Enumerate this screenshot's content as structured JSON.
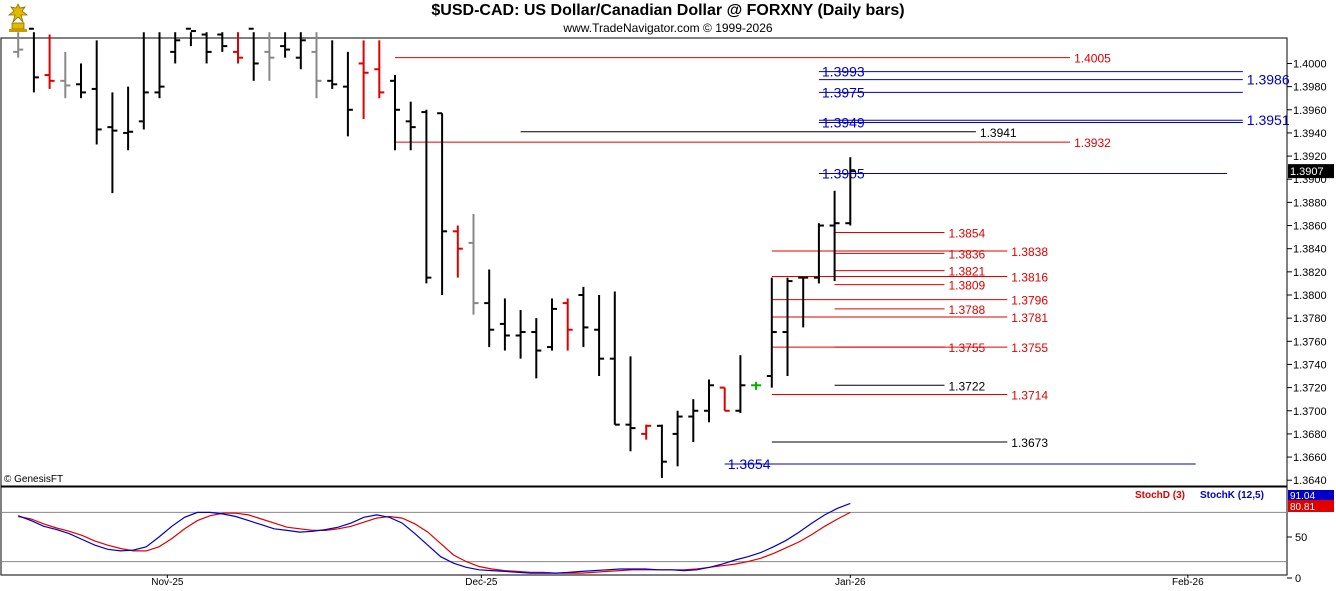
{
  "header": {
    "title": "$USD-CAD:  US Dollar/Canadian Dollar @ FORXNY  (Daily bars)",
    "subtitle": "www.TradeNavigator.com © 1999-2026"
  },
  "copyright": "© GenesisFT",
  "colors": {
    "up": "#000000",
    "down": "#e00000",
    "neutral": "#888888",
    "reversal": "#00b000",
    "line_red": "#e00000",
    "line_blue": "#0000c8",
    "line_black": "#000000",
    "stochD": "#e00000",
    "stochK": "#0000c8",
    "grid_line": "#888888",
    "price_marker_bg": "#000000"
  },
  "chart_data": [
    {
      "type": "ohlc",
      "title": "$USD-CAD:  US Dollar/Canadian Dollar @ FORXNY  (Daily bars)",
      "ylim": [
        1.3635,
        1.4022
      ],
      "yticks": [
        "1.4000",
        "1.3980",
        "1.3960",
        "1.3940",
        "1.3920",
        "1.3900",
        "1.3880",
        "1.3860",
        "1.3840",
        "1.3820",
        "1.3800",
        "1.3780",
        "1.3760",
        "1.3740",
        "1.3720",
        "1.3700",
        "1.3680",
        "1.3660",
        "1.3640"
      ],
      "current_price": "1.3907",
      "x_labels": [
        {
          "label": "Nov-25",
          "bar": 9.5
        },
        {
          "label": "Dec-25",
          "bar": 29.5
        },
        {
          "label": "Jan-26",
          "bar": 53
        },
        {
          "label": "Feb-26",
          "bar": 74.5
        }
      ],
      "bars": [
        {
          "o": 1.401,
          "h": 1.406,
          "l": 1.4005,
          "c": 1.4012,
          "color": "neutral"
        },
        {
          "o": 1.403,
          "h": 1.407,
          "l": 1.3975,
          "c": 1.3988,
          "color": "up"
        },
        {
          "o": 1.399,
          "h": 1.4025,
          "l": 1.3978,
          "c": 1.3985,
          "color": "down"
        },
        {
          "o": 1.3985,
          "h": 1.401,
          "l": 1.397,
          "c": 1.3981,
          "color": "neutral"
        },
        {
          "o": 1.3982,
          "h": 1.4,
          "l": 1.397,
          "c": 1.3975,
          "color": "up"
        },
        {
          "o": 1.3978,
          "h": 1.402,
          "l": 1.393,
          "c": 1.3943,
          "color": "up"
        },
        {
          "o": 1.3945,
          "h": 1.3975,
          "l": 1.3888,
          "c": 1.3942,
          "color": "up"
        },
        {
          "o": 1.394,
          "h": 1.398,
          "l": 1.3925,
          "c": 1.3941,
          "color": "up"
        },
        {
          "o": 1.395,
          "h": 1.405,
          "l": 1.3943,
          "c": 1.3975,
          "color": "up"
        },
        {
          "o": 1.3975,
          "h": 1.406,
          "l": 1.397,
          "c": 1.398,
          "color": "up"
        },
        {
          "o": 1.401,
          "h": 1.407,
          "l": 1.4,
          "c": 1.402,
          "color": "up"
        },
        {
          "o": 1.403,
          "h": 1.407,
          "l": 1.4015,
          "c": 1.4028,
          "color": "up"
        },
        {
          "o": 1.4025,
          "h": 1.406,
          "l": 1.4,
          "c": 1.401,
          "color": "up"
        },
        {
          "o": 1.4025,
          "h": 1.406,
          "l": 1.401,
          "c": 1.4015,
          "color": "up"
        },
        {
          "o": 1.401,
          "h": 1.405,
          "l": 1.4,
          "c": 1.4005,
          "color": "down"
        },
        {
          "o": 1.403,
          "h": 1.406,
          "l": 1.3985,
          "c": 1.4,
          "color": "up"
        },
        {
          "o": 1.401,
          "h": 1.405,
          "l": 1.3985,
          "c": 1.4005,
          "color": "neutral"
        },
        {
          "o": 1.4015,
          "h": 1.405,
          "l": 1.4005,
          "c": 1.4012,
          "color": "up"
        },
        {
          "o": 1.4005,
          "h": 1.404,
          "l": 1.3995,
          "c": 1.402,
          "color": "up"
        },
        {
          "o": 1.401,
          "h": 1.405,
          "l": 1.397,
          "c": 1.3985,
          "color": "neutral"
        },
        {
          "o": 1.3985,
          "h": 1.402,
          "l": 1.3978,
          "c": 1.3982,
          "color": "up"
        },
        {
          "o": 1.398,
          "h": 1.401,
          "l": 1.3937,
          "c": 1.396,
          "color": "up"
        },
        {
          "o": 1.4,
          "h": 1.402,
          "l": 1.3952,
          "c": 1.3992,
          "color": "down"
        },
        {
          "o": 1.3995,
          "h": 1.402,
          "l": 1.397,
          "c": 1.3975,
          "color": "down"
        },
        {
          "o": 1.3985,
          "h": 1.399,
          "l": 1.3925,
          "c": 1.396,
          "color": "up"
        },
        {
          "o": 1.395,
          "h": 1.3967,
          "l": 1.3925,
          "c": 1.3945,
          "color": "up"
        },
        {
          "o": 1.3958,
          "h": 1.396,
          "l": 1.381,
          "c": 1.3815,
          "color": "up"
        },
        {
          "o": 1.3957,
          "h": 1.3957,
          "l": 1.38,
          "c": 1.3855,
          "color": "up"
        },
        {
          "o": 1.3855,
          "h": 1.386,
          "l": 1.3815,
          "c": 1.384,
          "color": "down"
        },
        {
          "o": 1.3845,
          "h": 1.387,
          "l": 1.3783,
          "c": 1.3793,
          "color": "neutral"
        },
        {
          "o": 1.3793,
          "h": 1.3822,
          "l": 1.3755,
          "c": 1.377,
          "color": "up"
        },
        {
          "o": 1.3775,
          "h": 1.3797,
          "l": 1.3752,
          "c": 1.3765,
          "color": "up"
        },
        {
          "o": 1.3765,
          "h": 1.3787,
          "l": 1.3745,
          "c": 1.3768,
          "color": "up"
        },
        {
          "o": 1.3768,
          "h": 1.378,
          "l": 1.3728,
          "c": 1.3752,
          "color": "up"
        },
        {
          "o": 1.3755,
          "h": 1.3797,
          "l": 1.3752,
          "c": 1.3788,
          "color": "up"
        },
        {
          "o": 1.3793,
          "h": 1.3797,
          "l": 1.3752,
          "c": 1.377,
          "color": "down"
        },
        {
          "o": 1.38,
          "h": 1.3807,
          "l": 1.3755,
          "c": 1.3772,
          "color": "up"
        },
        {
          "o": 1.377,
          "h": 1.38,
          "l": 1.373,
          "c": 1.3745,
          "color": "up"
        },
        {
          "o": 1.3745,
          "h": 1.3803,
          "l": 1.3688,
          "c": 1.3688,
          "color": "up"
        },
        {
          "o": 1.3688,
          "h": 1.3747,
          "l": 1.3665,
          "c": 1.3685,
          "color": "up"
        },
        {
          "o": 1.368,
          "h": 1.3688,
          "l": 1.3675,
          "c": 1.3687,
          "color": "down"
        },
        {
          "o": 1.3687,
          "h": 1.3688,
          "l": 1.3642,
          "c": 1.3656,
          "color": "up"
        },
        {
          "o": 1.368,
          "h": 1.37,
          "l": 1.3652,
          "c": 1.3695,
          "color": "up"
        },
        {
          "o": 1.3695,
          "h": 1.371,
          "l": 1.3673,
          "c": 1.37,
          "color": "up"
        },
        {
          "o": 1.37,
          "h": 1.3727,
          "l": 1.369,
          "c": 1.3722,
          "color": "up"
        },
        {
          "o": 1.372,
          "h": 1.372,
          "l": 1.37,
          "c": 1.37,
          "color": "down"
        },
        {
          "o": 1.37,
          "h": 1.3748,
          "l": 1.3698,
          "c": 1.3722,
          "color": "up"
        },
        {
          "o": 1.3722,
          "h": 1.3725,
          "l": 1.3718,
          "c": 1.3722,
          "color": "reversal"
        },
        {
          "o": 1.373,
          "h": 1.3815,
          "l": 1.372,
          "c": 1.3768,
          "color": "up"
        },
        {
          "o": 1.3768,
          "h": 1.3815,
          "l": 1.373,
          "c": 1.3812,
          "color": "up"
        },
        {
          "o": 1.3815,
          "h": 1.3815,
          "l": 1.3772,
          "c": 1.3815,
          "color": "up"
        },
        {
          "o": 1.3815,
          "h": 1.3862,
          "l": 1.381,
          "c": 1.386,
          "color": "up"
        },
        {
          "o": 1.386,
          "h": 1.389,
          "l": 1.3812,
          "c": 1.3862,
          "color": "up"
        },
        {
          "o": 1.3862,
          "h": 1.3919,
          "l": 1.386,
          "c": 1.3907,
          "color": "up"
        }
      ],
      "levels": [
        {
          "price": 1.4005,
          "label": "1.4005",
          "color": "line_red",
          "from": 24,
          "to": 67,
          "label_side": "right"
        },
        {
          "price": 1.3993,
          "label": "1.3993",
          "color": "line_blue",
          "from": 51,
          "to": 78,
          "label_side": "left"
        },
        {
          "price": 1.3986,
          "label": "1.3986",
          "color": "line_blue",
          "from": 51,
          "to": 78,
          "label_side": "right"
        },
        {
          "price": 1.3975,
          "label": "1.3975",
          "color": "line_blue",
          "from": 51,
          "to": 78,
          "label_side": "left"
        },
        {
          "price": 1.3951,
          "label": "1.3951",
          "color": "line_blue",
          "from": 51,
          "to": 78,
          "label_side": "right"
        },
        {
          "price": 1.3949,
          "label": "1.3949",
          "color": "line_blue",
          "from": 51,
          "to": 78,
          "label_side": "left"
        },
        {
          "price": 1.3941,
          "label": "1.3941",
          "color": "line_black",
          "from": 32,
          "to": 61,
          "label_side": "right"
        },
        {
          "price": 1.3932,
          "label": "1.3932",
          "color": "line_red",
          "from": 24,
          "to": 67,
          "label_side": "right"
        },
        {
          "price": 1.3905,
          "label": "1.3905",
          "color": "line_blue",
          "from": 51,
          "to": 77,
          "label_side": "left"
        },
        {
          "price": 1.3854,
          "label": "1.3854",
          "color": "line_red",
          "from": 52,
          "to": 59,
          "label_side": "right"
        },
        {
          "price": 1.3838,
          "label": "1.3838",
          "color": "line_red",
          "from": 48,
          "to": 63,
          "label_side": "right"
        },
        {
          "price": 1.3836,
          "label": "1.3836",
          "color": "line_red",
          "from": 52,
          "to": 59,
          "label_side": "right"
        },
        {
          "price": 1.3821,
          "label": "1.3821",
          "color": "line_red",
          "from": 52,
          "to": 59,
          "label_side": "right"
        },
        {
          "price": 1.3816,
          "label": "1.3816",
          "color": "line_red",
          "from": 48,
          "to": 63,
          "label_side": "right"
        },
        {
          "price": 1.3809,
          "label": "1.3809",
          "color": "line_red",
          "from": 52,
          "to": 59,
          "label_side": "right"
        },
        {
          "price": 1.3796,
          "label": "1.3796",
          "color": "line_red",
          "from": 48,
          "to": 63,
          "label_side": "right"
        },
        {
          "price": 1.3788,
          "label": "1.3788",
          "color": "line_red",
          "from": 52,
          "to": 59,
          "label_side": "right"
        },
        {
          "price": 1.3781,
          "label": "1.3781",
          "color": "line_red",
          "from": 48,
          "to": 63,
          "label_side": "right"
        },
        {
          "price": 1.3755,
          "label": "1.3755",
          "color": "line_red",
          "from": 52,
          "to": 59,
          "label_side": "right"
        },
        {
          "price": 1.3755,
          "label": "1.3755",
          "color": "line_red",
          "from": 48,
          "to": 63,
          "label_side": "right"
        },
        {
          "price": 1.3722,
          "label": "1.3722",
          "color": "line_black",
          "from": 52,
          "to": 59,
          "label_side": "right"
        },
        {
          "price": 1.3714,
          "label": "1.3714",
          "color": "line_red",
          "from": 48,
          "to": 63,
          "label_side": "right"
        },
        {
          "price": 1.3673,
          "label": "1.3673",
          "color": "line_black",
          "from": 48,
          "to": 63,
          "label_side": "right"
        },
        {
          "price": 1.3654,
          "label": "1.3654",
          "color": "line_blue",
          "from": 45,
          "to": 75,
          "label_side": "left"
        }
      ]
    },
    {
      "type": "line",
      "legend": [
        "StochD (3)",
        "StochK (12,5)"
      ],
      "ylim": [
        0,
        100
      ],
      "yticks": [
        "50",
        "0"
      ],
      "reference_lines": [
        80,
        20
      ],
      "values_label": {
        "k": "91.04",
        "d": "80.81"
      },
      "series": [
        {
          "name": "StochD (3)",
          "color": "stochD",
          "values": [
            75,
            72,
            66,
            61,
            57,
            52,
            45,
            40,
            36,
            33,
            33,
            38,
            48,
            60,
            70,
            76,
            79,
            79,
            77,
            72,
            67,
            62,
            60,
            58,
            58,
            60,
            63,
            68,
            73,
            75,
            73,
            66,
            56,
            42,
            28,
            20,
            14,
            11,
            9,
            8,
            7,
            7,
            6,
            6,
            6,
            7,
            8,
            9,
            10,
            10,
            10,
            10,
            10,
            11,
            13,
            15,
            17,
            20,
            24,
            30,
            37,
            44,
            53,
            63,
            72,
            80
          ]
        },
        {
          "name": "StochK (12,5)",
          "color": "stochK",
          "values": [
            76,
            70,
            63,
            59,
            54,
            47,
            40,
            35,
            33,
            34,
            38,
            50,
            63,
            74,
            80,
            80,
            78,
            75,
            70,
            65,
            60,
            58,
            56,
            57,
            59,
            62,
            67,
            74,
            77,
            74,
            67,
            54,
            40,
            26,
            18,
            13,
            10,
            9,
            8,
            7,
            6,
            6,
            6,
            7,
            8,
            9,
            10,
            11,
            11,
            11,
            10,
            10,
            9,
            10,
            13,
            17,
            22,
            26,
            31,
            38,
            46,
            56,
            67,
            77,
            85,
            91
          ]
        }
      ]
    }
  ]
}
